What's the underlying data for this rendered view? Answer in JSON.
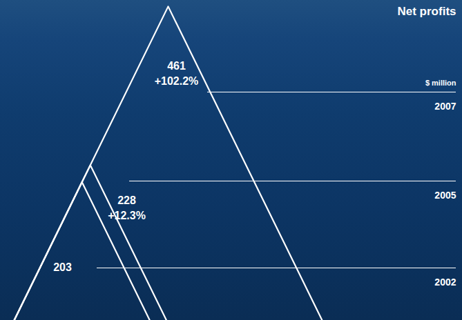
{
  "chart_data": {
    "type": "triangle",
    "title": "Net profits",
    "ylabel": "$ million",
    "categories": [
      "2002",
      "2005",
      "2007"
    ],
    "values": [
      203,
      228,
      461
    ],
    "growth_labels": [
      null,
      "+12.3%",
      "+102.2%"
    ],
    "ylim": [
      0,
      470
    ],
    "tick_labels": false,
    "data_labels": true,
    "color": "#ffffff"
  }
}
